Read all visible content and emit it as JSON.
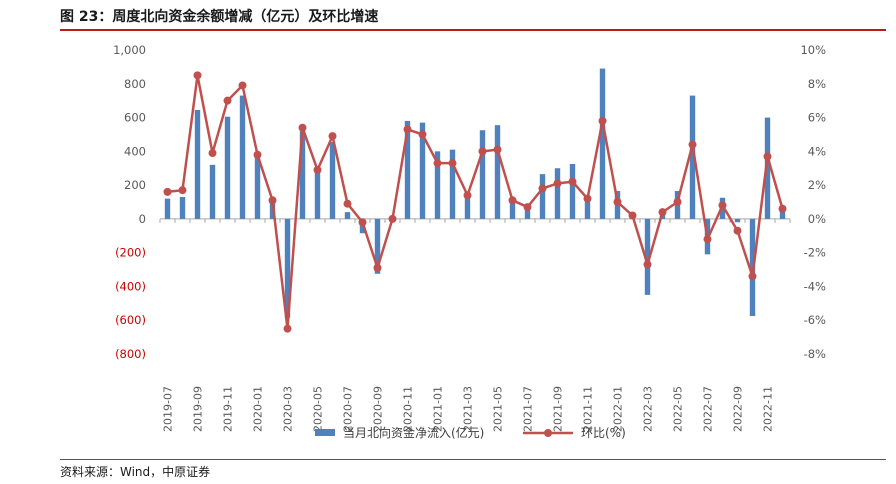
{
  "figure": {
    "title": "图 23：周度北向资金余额增减（亿元）及环比增速",
    "source": "资料来源：Wind，中原证券"
  },
  "chart_data": {
    "type": "bar+line",
    "x_ticks": [
      "2019-07",
      "2019-09",
      "2019-11",
      "2020-01",
      "2020-03",
      "2020-05",
      "2020-07",
      "2020-09",
      "2020-11",
      "2021-01",
      "2021-03",
      "2021-05",
      "2021-07",
      "2021-09",
      "2021-11",
      "2022-01",
      "2022-03",
      "2022-05",
      "2022-07",
      "2022-09",
      "2022-11"
    ],
    "y_left": {
      "ylim": [
        -800,
        1000
      ],
      "ticks": [
        1000,
        800,
        600,
        400,
        200,
        0,
        -200,
        -400,
        -600,
        -800
      ],
      "tick_labels": [
        "1,000",
        "800",
        "600",
        "400",
        "200",
        "0",
        "(200)",
        "(400)",
        "(600)",
        "(800)"
      ],
      "negative_label_color": "#cc0000"
    },
    "y_right": {
      "ylim": [
        -8,
        10
      ],
      "ticks": [
        10,
        8,
        6,
        4,
        2,
        0,
        -2,
        -4,
        -6,
        -8
      ],
      "tick_labels": [
        "10%",
        "8%",
        "6%",
        "4%",
        "2%",
        "0%",
        "-2%",
        "-4%",
        "-6%",
        "-8%"
      ]
    },
    "series": [
      {
        "name": "当月北向资金净流入(亿元)",
        "type": "bar",
        "color": "#4f81bd",
        "values": [
          120,
          130,
          645,
          320,
          605,
          730,
          385,
          110,
          -585,
          520,
          290,
          455,
          40,
          -85,
          -325,
          5,
          580,
          570,
          400,
          410,
          140,
          525,
          555,
          120,
          80,
          265,
          300,
          325,
          130,
          890,
          165,
          25,
          -450,
          45,
          165,
          730,
          -210,
          125,
          -20,
          -575,
          600,
          75
        ]
      },
      {
        "name": "环比(%)",
        "type": "line",
        "color": "#c0504d",
        "values": [
          1.6,
          1.7,
          8.5,
          3.9,
          7.0,
          7.9,
          3.8,
          1.1,
          -6.5,
          5.4,
          2.9,
          4.9,
          0.9,
          -0.2,
          -2.9,
          0.0,
          5.3,
          5.0,
          3.3,
          3.3,
          1.4,
          4.0,
          4.1,
          1.1,
          0.7,
          1.8,
          2.1,
          2.2,
          1.2,
          5.8,
          1.0,
          0.2,
          -2.7,
          0.4,
          1.0,
          4.4,
          -1.2,
          0.8,
          -0.7,
          -3.4,
          3.7,
          0.6
        ]
      }
    ],
    "legend_position": "bottom-center",
    "grid": false
  }
}
